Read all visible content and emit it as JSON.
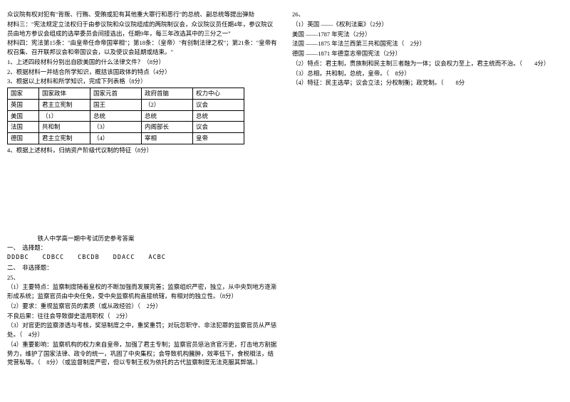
{
  "left": {
    "p1": "众议院有权对犯有\"背叛、行贿、受贿或犯有其他重大罪行和恶行\"的总统、副总统等提出弹劾",
    "p2": "材料三：\"宪法规定立法权归于由参议院和众议院组成的两院制议会，众议院议员任期4年，参议院议员由地方参议会组成的选举委员会间接选出，任期9年，每三年改选其中的三分之一\"",
    "p3": "材料四：宪法第15条：\"由皇帝任命帝国宰相\"；第18条：（皇帝）\"有创制法律之权\"；第21条：\"皇帝有权召集、召开联邦议会和帝国议会，以及使议会延期或结束。\"",
    "q1": "1、上述四段材料分别出自欧美国的什么法律文件？（8分）",
    "q2": "2、根据材料一并结合所学知识，概括该国政体的特点（4分）",
    "q3": "3、根据以上材料和所学知识，完成下列表格（8分）",
    "q4": "4、根据上述材料，归纳资产阶级代议制的特征（8分）",
    "table": {
      "headers": [
        "国家",
        "国家政体",
        "国家元首",
        "政府首脑",
        "权力中心"
      ],
      "rows": [
        [
          "英国",
          "君主立宪制",
          "国王",
          "（2）",
          "议会"
        ],
        [
          "美国",
          "（1）",
          "总统",
          "总统",
          "总统"
        ],
        [
          "法国",
          "共和制",
          "（3）",
          "内阁部长",
          "议会"
        ],
        [
          "德国",
          "君主立宪制",
          "（4）",
          "宰相",
          "皇帝"
        ]
      ]
    },
    "answer_title": "铁人中学高一期中考试历史参考答案",
    "sec1_label": "一、　选择题：",
    "sec1_ans": "DDDBC　　CDBCC　　CBCDB　　DDACC　　ACBC",
    "sec2_label": "二、　非选择题：",
    "a25": "25、",
    "a25_1": "（1）主要特点：监察制度随着皇权的不断加强而发展完善；监察组织严密，独立，从中央到地方逐渐形成系统；监察官员由中央任免，受中央监察机构直接统辖，有相对的独立性。（8分）",
    "a25_2a": "（2）要求：重视监察官员的素质（或从政经验）（　2分）",
    "a25_2b": "不良后果：往往会导致御史滥用职权（　2分）",
    "a25_3": "（3）对官吏的监察渗透与考核，奖惩制度之中，重奖重罚；对玩忽职守、非法犯罪的监察官员从严惩处。（　4分）",
    "a25_4": "（4）重要影响：监察机构的权力来自皇帝，加强了君主专制；监察官员惩治贪官污吏，打击地方割据势力，维护了国家法律、政令的统一，巩固了中央集权；会导致机构臃肿，效率低下，食税相法，结党营私等。（　8分）（或监督制度严密，但以专制王权为依托的古代监察制度无法克服其弊端。）"
  },
  "right": {
    "a26": "26、",
    "a26_1a": "（1）英国 ——《权利法案》（2分）",
    "a26_1b": "美国 ——1787 年宪法（2分）",
    "a26_1c": "法国 ——1875 年法兰西第三共和国宪法（　2分）",
    "a26_1d": "德国 ——1871 年德意志帝国宪法（2分）",
    "a26_2": "（2）特点：君主制，贵族制和民主制三者融为一体；议会权力至上，君主统而不治。（　　4分）",
    "a26_3": "（3）总相，共和制，总统，皇帝。（　8分）",
    "a26_4": "（4）特征：民主选举；议会立法；分权制衡；政党制。（　　8分"
  },
  "style": {
    "bg": "#ffffff",
    "text": "#000000",
    "border": "#000000",
    "fontsize": 8.5
  }
}
